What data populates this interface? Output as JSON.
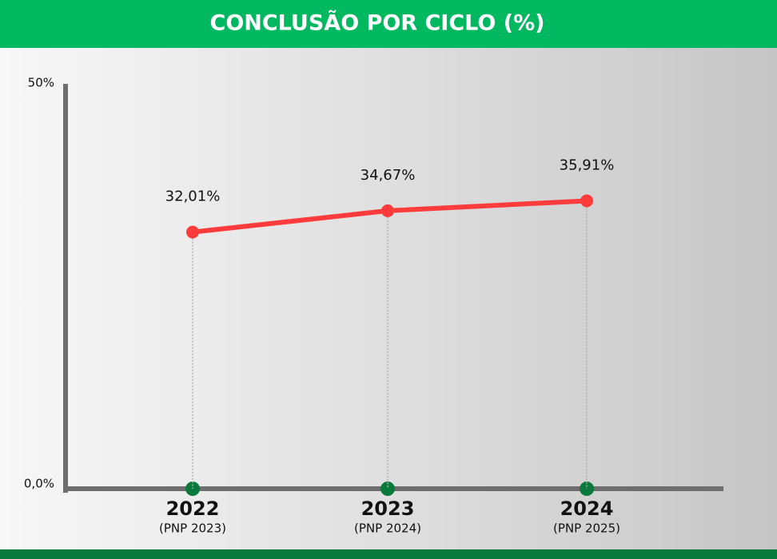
{
  "chart_data": {
    "type": "line",
    "title": "CONCLUSÃO POR CICLO (%)",
    "categories": [
      "2022",
      "2023",
      "2024"
    ],
    "category_notes": [
      "(PNP 2023)",
      "(PNP 2024)",
      "(PNP 2025)"
    ],
    "series": [
      {
        "color": "#ff3b3b",
        "values": [
          32.01,
          34.67,
          35.91
        ],
        "value_labels": [
          "32,01%",
          "34,67%",
          "35,91%"
        ]
      }
    ],
    "ylim": [
      0,
      50
    ],
    "yticks": [
      {
        "value": 0,
        "label": "0,0%"
      },
      {
        "value": 50,
        "label": "50%"
      }
    ],
    "marker_color": "#0a7a3c",
    "header_color": "#00b860"
  }
}
